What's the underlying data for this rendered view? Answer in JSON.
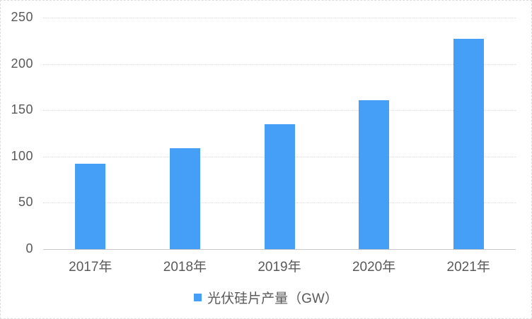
{
  "chart_data": {
    "type": "bar",
    "title": "",
    "xlabel": "",
    "ylabel": "",
    "categories": [
      "2017年",
      "2018年",
      "2019年",
      "2020年",
      "2021年"
    ],
    "values": [
      92,
      109,
      135,
      161,
      227
    ],
    "series_name": "光伏硅片产量（GW）",
    "ylim": [
      0,
      250
    ],
    "yticks": [
      0,
      50,
      100,
      150,
      200,
      250
    ],
    "grid": true,
    "gridline_style": "dotted",
    "legend_position": "bottom-center",
    "bar_color": "#459ff7"
  },
  "legend": {
    "swatch_icon": "square-swatch-icon",
    "label": "光伏硅片产量（GW）"
  },
  "colors": {
    "bar": "#459ff7",
    "grid": "#d9d9d9",
    "zero_axis": "#c6c6c6",
    "text": "#595959",
    "frame_border": "#dcdcdc",
    "background": "#ffffff"
  }
}
